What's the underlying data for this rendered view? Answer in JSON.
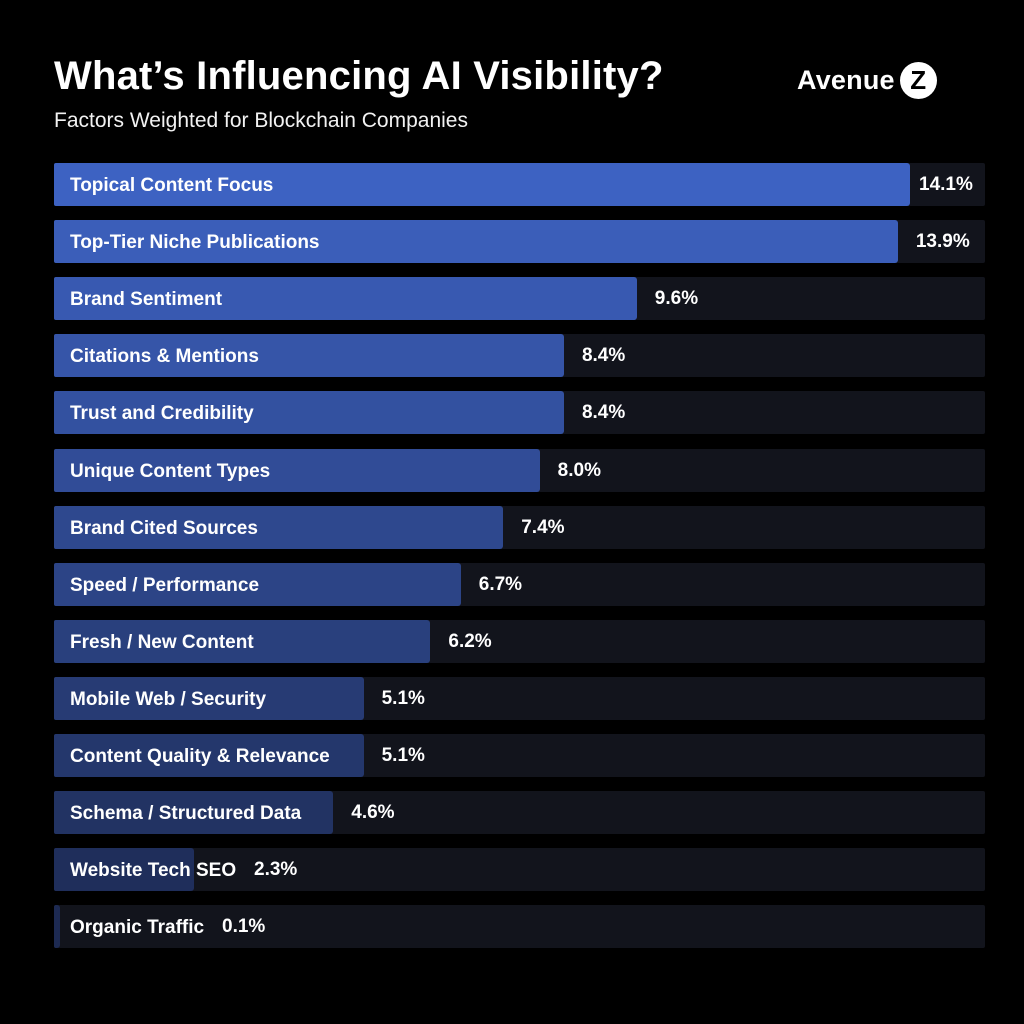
{
  "header": {
    "title": "What’s Influencing AI Visibility?",
    "subtitle": "Factors Weighted for Blockchain Companies"
  },
  "logo": {
    "wordmark": "Avenue",
    "badge_letter": "Z"
  },
  "colors": {
    "background": "#000000",
    "track": "#12141c",
    "bar_top": "#3d62c2",
    "bar_bottom": "#1d2a52",
    "text": "#ffffff"
  },
  "chart_data": {
    "type": "bar",
    "orientation": "horizontal",
    "title": "What’s Influencing AI Visibility?",
    "subtitle": "Factors Weighted for Blockchain Companies",
    "categories": [
      "Topical Content Focus",
      "Top-Tier Niche Publications",
      "Brand Sentiment",
      "Citations & Mentions",
      "Trust and Credibility",
      "Unique Content Types",
      "Brand Cited Sources",
      "Speed / Performance",
      "Fresh / New Content",
      "Mobile Web / Security",
      "Content Quality & Relevance",
      "Schema / Structured Data",
      "Website Tech SEO",
      "Organic Traffic"
    ],
    "values": [
      14.1,
      13.9,
      9.6,
      8.4,
      8.4,
      8.0,
      7.4,
      6.7,
      6.2,
      5.1,
      5.1,
      4.6,
      2.3,
      0.1
    ],
    "value_labels": [
      "14.1%",
      "13.9%",
      "9.6%",
      "8.4%",
      "8.4%",
      "8.0%",
      "7.4%",
      "6.7%",
      "6.2%",
      "5.1%",
      "5.1%",
      "4.6%",
      "2.3%",
      "0.1%"
    ],
    "unit": "%",
    "xlim": [
      0,
      14.1
    ],
    "grid": false,
    "legend": "none",
    "xlabel": "",
    "ylabel": ""
  }
}
